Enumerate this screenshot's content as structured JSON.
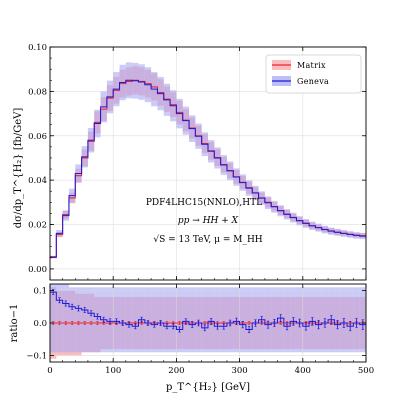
{
  "chart_data": [
    {
      "type": "line",
      "panel": "main",
      "ylabel": "dσ/dp_T^{H₂} [fb/GeV]",
      "xlim": [
        0,
        500
      ],
      "ylim": [
        -0.005,
        0.1
      ],
      "xticks": [
        0,
        100,
        200,
        300,
        400,
        500
      ],
      "yticks": [
        0.0,
        0.02,
        0.04,
        0.06,
        0.08,
        0.1
      ],
      "ytick_labels": [
        "0.00",
        "0.02",
        "0.04",
        "0.06",
        "0.08",
        "0.10"
      ],
      "grid": true,
      "legend_position": "top-right",
      "annotations": [
        "PDF4LHC15(NNLO),HTL",
        "pp → HH + X",
        "√S = 13 TeV,  μ = M_HH"
      ],
      "bin_width": 10,
      "x": [
        5,
        15,
        25,
        35,
        45,
        55,
        65,
        75,
        85,
        95,
        105,
        115,
        125,
        135,
        145,
        155,
        165,
        175,
        185,
        195,
        205,
        215,
        225,
        235,
        245,
        255,
        265,
        275,
        285,
        295,
        305,
        315,
        325,
        335,
        345,
        355,
        365,
        375,
        385,
        395,
        405,
        415,
        425,
        435,
        445,
        455,
        465,
        475,
        485,
        495
      ],
      "series": [
        {
          "name": "Matrix",
          "color": "#e8282f",
          "band_color": "#f7a5aa",
          "values": [
            0.0055,
            0.0155,
            0.0245,
            0.032,
            0.042,
            0.05,
            0.0575,
            0.066,
            0.072,
            0.077,
            0.0805,
            0.0835,
            0.0845,
            0.085,
            0.0845,
            0.0835,
            0.082,
            0.0795,
            0.0765,
            0.074,
            0.0705,
            0.067,
            0.0635,
            0.06,
            0.0565,
            0.0532,
            0.0502,
            0.047,
            0.0443,
            0.0415,
            0.039,
            0.0366,
            0.0343,
            0.032,
            0.03,
            0.0281,
            0.0263,
            0.0247,
            0.0232,
            0.0218,
            0.0206,
            0.0195,
            0.0186,
            0.0178,
            0.0171,
            0.0165,
            0.016,
            0.0156,
            0.0152,
            0.015
          ],
          "rel_err": 0.075
        },
        {
          "name": "Geneva",
          "color": "#1a1ad8",
          "band_color": "#a9a9f3",
          "values": [
            0.0052,
            0.016,
            0.024,
            0.033,
            0.043,
            0.0505,
            0.058,
            0.0655,
            0.073,
            0.0775,
            0.081,
            0.084,
            0.085,
            0.0848,
            0.0842,
            0.083,
            0.081,
            0.079,
            0.0762,
            0.0735,
            0.07,
            0.0668,
            0.0632,
            0.0598,
            0.0562,
            0.053,
            0.05,
            0.0468,
            0.0442,
            0.0414,
            0.0389,
            0.0364,
            0.0342,
            0.0319,
            0.0298,
            0.028,
            0.0262,
            0.0246,
            0.0231,
            0.0217,
            0.0205,
            0.0194,
            0.0186,
            0.0177,
            0.017,
            0.0165,
            0.016,
            0.0155,
            0.0151,
            0.0148
          ],
          "rel_err": 0.095
        }
      ]
    },
    {
      "type": "line",
      "panel": "ratio",
      "xlabel": "p_T^{H₂} [GeV]",
      "ylabel": "ratio−1",
      "xlim": [
        0,
        500
      ],
      "ylim": [
        -0.12,
        0.12
      ],
      "xticks": [
        0,
        100,
        200,
        300,
        400,
        500
      ],
      "xtick_labels": [
        "0",
        "100",
        "200",
        "300",
        "400",
        "500"
      ],
      "yticks": [
        -0.1,
        0.0,
        0.1
      ],
      "ytick_labels": [
        "−0.1",
        "0.0",
        "0.1"
      ],
      "grid": true,
      "x": [
        5,
        15,
        25,
        35,
        45,
        55,
        65,
        75,
        85,
        95,
        105,
        115,
        125,
        135,
        145,
        155,
        165,
        175,
        185,
        195,
        205,
        215,
        225,
        235,
        245,
        255,
        265,
        275,
        285,
        295,
        305,
        315,
        325,
        335,
        345,
        355,
        365,
        375,
        385,
        395,
        405,
        415,
        425,
        435,
        445,
        455,
        465,
        475,
        485,
        495
      ],
      "series": [
        {
          "name": "Matrix",
          "color": "#e8282f",
          "band_color": "#f7a5aa",
          "values": [
            0,
            0,
            0,
            0,
            0,
            0,
            0,
            0,
            0,
            0,
            0,
            0,
            0,
            0,
            0,
            0,
            0,
            0,
            0,
            0,
            0,
            0,
            0,
            0,
            0,
            0,
            0,
            0,
            0,
            0,
            0,
            0,
            0,
            0,
            0,
            0,
            0,
            0,
            0,
            0,
            0,
            0,
            0,
            0,
            0,
            0,
            0,
            0,
            0,
            0
          ],
          "band_lo": [
            -0.11,
            -0.1,
            -0.1,
            -0.1,
            -0.1,
            -0.09,
            -0.09,
            -0.09,
            -0.08,
            -0.08,
            -0.08,
            -0.08,
            -0.08,
            -0.08,
            -0.08,
            -0.08,
            -0.08,
            -0.08,
            -0.08,
            -0.08,
            -0.08,
            -0.08,
            -0.08,
            -0.08,
            -0.08,
            -0.08,
            -0.08,
            -0.08,
            -0.08,
            -0.08,
            -0.08,
            -0.08,
            -0.08,
            -0.08,
            -0.08,
            -0.08,
            -0.08,
            -0.08,
            -0.08,
            -0.08,
            -0.08,
            -0.08,
            -0.08,
            -0.08,
            -0.08,
            -0.08,
            -0.08,
            -0.08,
            -0.08,
            -0.08
          ],
          "band_hi": [
            0.11,
            0.1,
            0.1,
            0.1,
            0.09,
            0.09,
            0.09,
            0.08,
            0.08,
            0.08,
            0.08,
            0.08,
            0.08,
            0.08,
            0.08,
            0.08,
            0.08,
            0.08,
            0.08,
            0.08,
            0.08,
            0.08,
            0.08,
            0.08,
            0.08,
            0.08,
            0.08,
            0.08,
            0.08,
            0.08,
            0.08,
            0.08,
            0.08,
            0.08,
            0.08,
            0.08,
            0.08,
            0.08,
            0.08,
            0.08,
            0.08,
            0.08,
            0.08,
            0.08,
            0.08,
            0.08,
            0.08,
            0.08,
            0.08,
            0.08
          ]
        },
        {
          "name": "Geneva",
          "color": "#1a1ad8",
          "band_color": "#a9a9f3",
          "values": [
            0.095,
            0.07,
            0.06,
            0.05,
            0.045,
            0.04,
            0.03,
            0.02,
            0.01,
            0.005,
            0.005,
            0.0,
            -0.005,
            -0.01,
            0.01,
            0.0,
            -0.005,
            0.0,
            -0.01,
            -0.01,
            -0.02,
            0.005,
            -0.005,
            0.0,
            -0.015,
            0.005,
            -0.01,
            -0.01,
            0.0,
            0.005,
            -0.005,
            -0.02,
            0.0,
            0.01,
            -0.005,
            0.0,
            0.015,
            -0.01,
            0.005,
            0.0,
            -0.01,
            0.005,
            -0.005,
            0.0,
            0.01,
            -0.005,
            0.0,
            -0.01,
            0.0,
            -0.005
          ],
          "errors": [
            0.008,
            0.008,
            0.008,
            0.008,
            0.008,
            0.008,
            0.008,
            0.008,
            0.008,
            0.008,
            0.008,
            0.008,
            0.008,
            0.008,
            0.008,
            0.008,
            0.008,
            0.008,
            0.008,
            0.008,
            0.008,
            0.008,
            0.009,
            0.009,
            0.009,
            0.009,
            0.009,
            0.009,
            0.009,
            0.01,
            0.01,
            0.01,
            0.01,
            0.01,
            0.011,
            0.011,
            0.011,
            0.011,
            0.012,
            0.012,
            0.012,
            0.012,
            0.013,
            0.013,
            0.013,
            0.013,
            0.014,
            0.014,
            0.014,
            0.015
          ],
          "band_lo": [
            -0.09,
            -0.09,
            -0.09,
            -0.09,
            -0.09,
            -0.09,
            -0.09,
            -0.09,
            -0.09,
            -0.09,
            -0.09,
            -0.09,
            -0.09,
            -0.09,
            -0.09,
            -0.09,
            -0.09,
            -0.09,
            -0.09,
            -0.09,
            -0.09,
            -0.09,
            -0.09,
            -0.09,
            -0.09,
            -0.09,
            -0.09,
            -0.09,
            -0.09,
            -0.09,
            -0.09,
            -0.09,
            -0.09,
            -0.09,
            -0.09,
            -0.09,
            -0.09,
            -0.09,
            -0.09,
            -0.09,
            -0.09,
            -0.09,
            -0.09,
            -0.09,
            -0.09,
            -0.09,
            -0.09,
            -0.09,
            -0.09,
            -0.09
          ],
          "band_hi": [
            0.12,
            0.12,
            0.12,
            0.11,
            0.11,
            0.11,
            0.11,
            0.11,
            0.11,
            0.11,
            0.11,
            0.11,
            0.11,
            0.11,
            0.11,
            0.11,
            0.11,
            0.11,
            0.11,
            0.11,
            0.11,
            0.11,
            0.11,
            0.11,
            0.11,
            0.11,
            0.11,
            0.11,
            0.11,
            0.11,
            0.11,
            0.11,
            0.11,
            0.11,
            0.11,
            0.11,
            0.11,
            0.11,
            0.11,
            0.11,
            0.11,
            0.11,
            0.11,
            0.11,
            0.11,
            0.11,
            0.11,
            0.11,
            0.11,
            0.11
          ]
        }
      ]
    }
  ]
}
